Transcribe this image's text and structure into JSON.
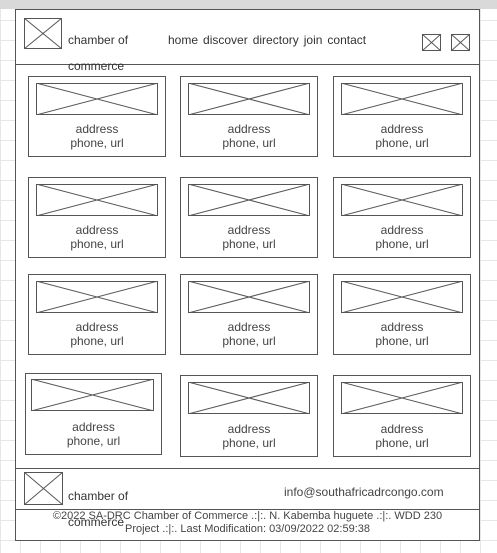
{
  "header": {
    "logo_line1": "chamber of",
    "logo_line2": "commerce",
    "nav": [
      "home",
      "discover",
      "directory",
      "join",
      "contact"
    ],
    "icons": [
      "social-icon-1",
      "social-icon-2"
    ]
  },
  "cards": [
    {
      "line1": "address",
      "line2": "phone, url"
    },
    {
      "line1": "address",
      "line2": "phone, url"
    },
    {
      "line1": "address",
      "line2": "phone, url"
    },
    {
      "line1": "address",
      "line2": "phone, url"
    },
    {
      "line1": "address",
      "line2": "phone, url"
    },
    {
      "line1": "address",
      "line2": "phone, url"
    },
    {
      "line1": "address",
      "line2": "phone, url"
    },
    {
      "line1": "address",
      "line2": "phone, url"
    },
    {
      "line1": "address",
      "line2": "phone, url"
    },
    {
      "line1": "address",
      "line2": "phone, url"
    },
    {
      "line1": "address",
      "line2": "phone, url"
    },
    {
      "line1": "address",
      "line2": "phone, url"
    }
  ],
  "footer": {
    "logo_line1": "chamber of",
    "logo_line2": "commerce",
    "email": "info@southafricadrcongo.com",
    "copyright_line1": "©2022 SA-DRC Chamber of Commerce .:|:. N. Kabemba huguete .:|:. WDD 230",
    "copyright_line2": "Project .:|:. Last Modification: 03/09/2022 02:59:38"
  },
  "colors": {
    "line": "#555555",
    "grid": "#e6e6e6",
    "text": "#333333"
  }
}
